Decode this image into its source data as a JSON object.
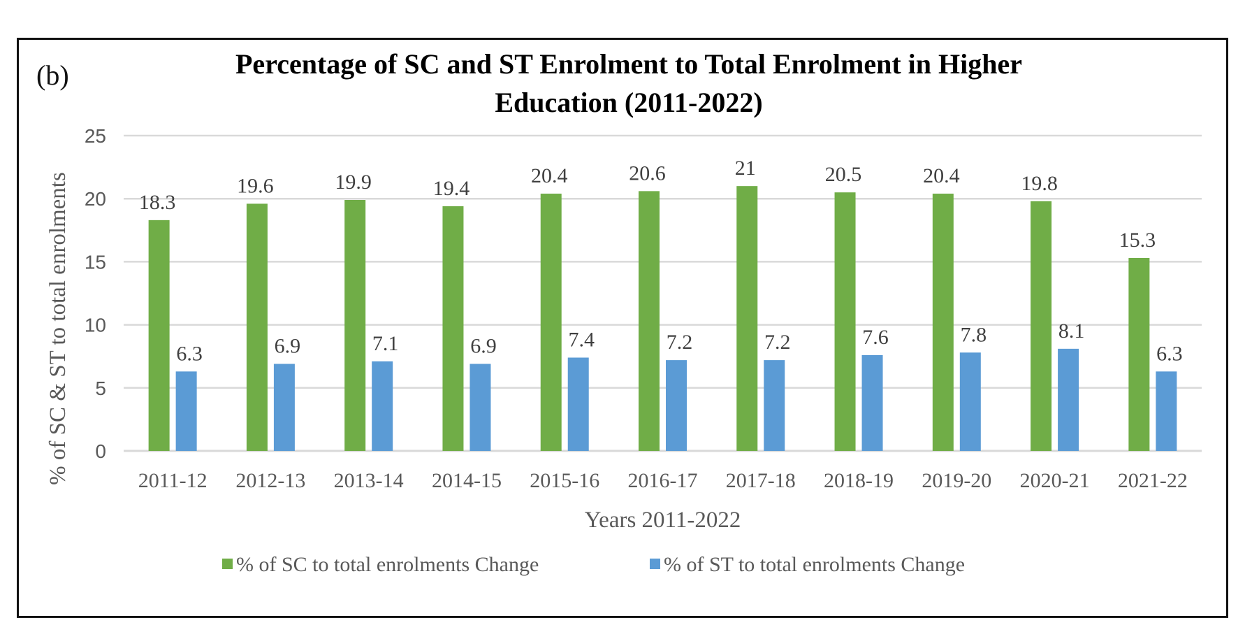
{
  "panel_label": "(b)",
  "chart_data": {
    "type": "bar",
    "title": "Percentage of SC and ST Enrolment to Total Enrolment in Higher Education (2011-2022)",
    "title_lines": [
      "Percentage of SC and ST Enrolment to Total Enrolment in Higher",
      "Education (2011-2022)"
    ],
    "xlabel": "Years 2011-2022",
    "ylabel": "% of SC & ST to total enrolments",
    "ylim": [
      0,
      25
    ],
    "yticks": [
      0,
      5,
      10,
      15,
      20,
      25
    ],
    "grid": true,
    "legend_position": "bottom",
    "categories": [
      "2011-12",
      "2012-13",
      "2013-14",
      "2014-15",
      "2015-16",
      "2016-17",
      "2017-18",
      "2018-19",
      "2019-20",
      "2020-21",
      "2021-22"
    ],
    "series": [
      {
        "name": "% of SC to total enrolments Change",
        "color": "#70AD47",
        "values": [
          18.3,
          19.6,
          19.9,
          19.4,
          20.4,
          20.6,
          21,
          20.5,
          20.4,
          19.8,
          15.3
        ]
      },
      {
        "name": "% of ST to total enrolments Change",
        "color": "#5B9BD5",
        "values": [
          6.3,
          6.9,
          7.1,
          6.9,
          7.4,
          7.2,
          7.2,
          7.6,
          7.8,
          8.1,
          6.3
        ]
      }
    ]
  }
}
